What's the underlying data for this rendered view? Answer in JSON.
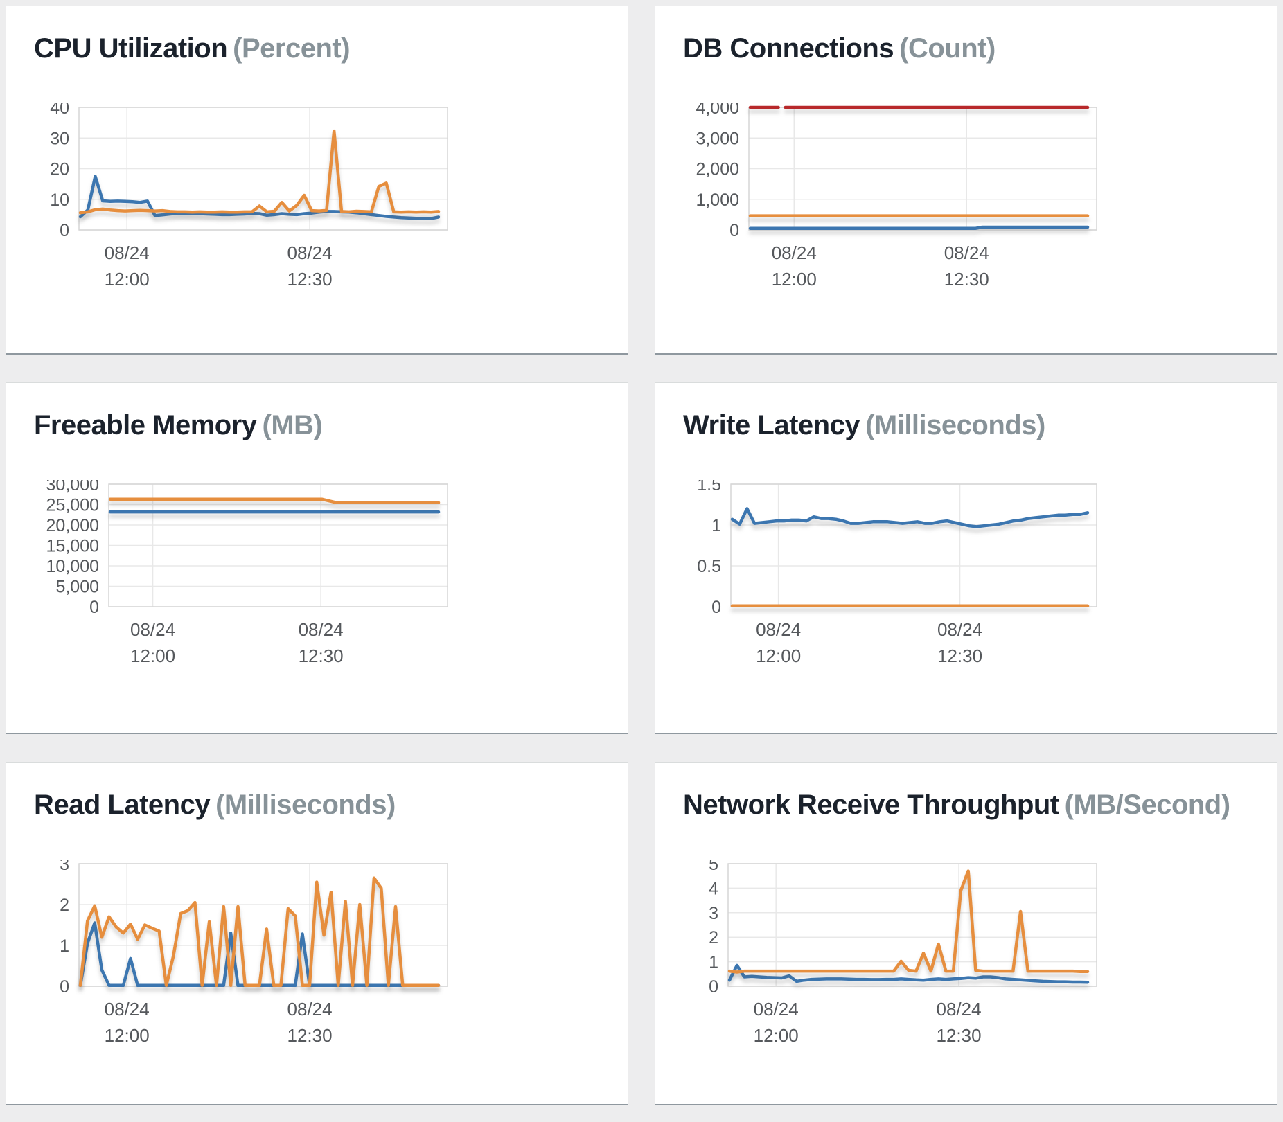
{
  "page": {
    "colors": {
      "background": "#ededee",
      "panel_bg": "#ffffff",
      "panel_border": "#d9dcdc",
      "panel_border_bottom": "#8f989f",
      "grid": "#e8e8e8",
      "plot_border": "#d6d6d6",
      "tick_text": "#55585c",
      "title_text": "#1b222c",
      "unit_text": "#879298",
      "series_blue": "#3C76B0",
      "series_orange": "#E68E3E",
      "series_red": "#B8292B"
    }
  },
  "x_axis": {
    "ticks": [
      {
        "frac": 0.13,
        "date": "08/24",
        "time": "12:00"
      },
      {
        "frac": 0.626,
        "date": "08/24",
        "time": "12:30"
      }
    ]
  },
  "chart_data": [
    {
      "type": "line",
      "title": "CPU Utilization",
      "unit": "(Percent)",
      "ylim": [
        0,
        40
      ],
      "y_tick_labels": [
        "0",
        "10",
        "20",
        "30",
        "40"
      ],
      "x_tick_labels": [
        "08/24 12:00",
        "08/24 12:30"
      ],
      "grid": "on",
      "legend": "none",
      "series": [
        {
          "name": "blue",
          "color": "#3C76B0",
          "values": [
            4.3,
            6.5,
            17.5,
            9.5,
            9.3,
            9.4,
            9.3,
            9.2,
            9.0,
            9.4,
            4.7,
            4.9,
            5.2,
            5.4,
            5.5,
            5.4,
            5.3,
            5.2,
            5.1,
            5.0,
            5.0,
            5.1,
            5.2,
            5.4,
            5.3,
            4.8,
            5.0,
            5.3,
            5.1,
            5.0,
            5.3,
            5.5,
            5.8,
            6.0,
            6.0,
            5.9,
            5.8,
            5.6,
            5.3,
            5.0,
            4.7,
            4.4,
            4.2,
            4.0,
            3.9,
            3.8,
            3.8,
            3.7,
            4.2
          ]
        },
        {
          "name": "orange",
          "color": "#E68E3E",
          "values": [
            5.6,
            5.9,
            6.6,
            6.8,
            6.5,
            6.3,
            6.2,
            6.3,
            6.4,
            6.3,
            6.2,
            6.3,
            6.0,
            5.9,
            5.9,
            5.8,
            5.9,
            5.8,
            5.8,
            5.9,
            5.8,
            5.8,
            5.9,
            5.9,
            7.8,
            5.9,
            6.1,
            9.0,
            6.2,
            8.0,
            11.3,
            6.3,
            6.2,
            6.4,
            32.3,
            6.0,
            5.9,
            6.1,
            6.0,
            5.9,
            14.2,
            15.3,
            5.9,
            5.8,
            5.9,
            5.8,
            5.9,
            5.8,
            6.0
          ]
        }
      ]
    },
    {
      "type": "line",
      "title": "DB Connections",
      "unit": "(Count)",
      "ylim": [
        0,
        4000
      ],
      "y_tick_labels": [
        "0",
        "1,000",
        "2,000",
        "3,000",
        "4,000"
      ],
      "x_tick_labels": [
        "08/24 12:00",
        "08/24 12:30"
      ],
      "grid": "on",
      "legend": "none",
      "series": [
        {
          "name": "blue",
          "color": "#3C76B0",
          "values": [
            50,
            50,
            50,
            50,
            50,
            50,
            50,
            50,
            50,
            50,
            50,
            50,
            50,
            50,
            50,
            50,
            50,
            50,
            50,
            50,
            50,
            50,
            50,
            50,
            50,
            50,
            50,
            50,
            50,
            50,
            50,
            50,
            50,
            90,
            90,
            90,
            90,
            90,
            90,
            90,
            90,
            90,
            90,
            90,
            90,
            90,
            90,
            90,
            90
          ]
        },
        {
          "name": "orange",
          "color": "#E68E3E",
          "values": [
            460,
            460,
            460,
            460,
            460,
            460,
            460,
            460,
            460,
            460,
            460,
            460,
            460,
            460,
            460,
            460,
            460,
            460,
            460,
            460,
            460,
            460,
            460,
            460,
            460,
            460,
            460,
            460,
            460,
            460,
            460,
            460,
            460,
            460,
            460,
            460,
            460,
            460,
            460,
            460,
            460,
            460,
            460,
            460,
            460,
            460,
            460,
            460,
            460
          ]
        },
        {
          "name": "red",
          "color": "#B8292B",
          "gap_frac": 0.11,
          "values": [
            4000,
            4000,
            4000,
            4000,
            4000,
            4000,
            4000,
            4000,
            4000,
            4000,
            4000,
            4000,
            4000,
            4000,
            4000,
            4000,
            4000,
            4000,
            4000,
            4000,
            4000,
            4000,
            4000,
            4000,
            4000,
            4000,
            4000,
            4000,
            4000,
            4000,
            4000,
            4000,
            4000,
            4000,
            4000,
            4000,
            4000,
            4000,
            4000,
            4000,
            4000,
            4000,
            4000,
            4000,
            4000,
            4000,
            4000,
            4000,
            4000
          ]
        }
      ]
    },
    {
      "type": "line",
      "title": "Freeable Memory",
      "unit": "(MB)",
      "ylim": [
        0,
        30000
      ],
      "y_tick_labels": [
        "0",
        "5,000",
        "10,000",
        "15,000",
        "20,000",
        "25,000",
        "30,000"
      ],
      "x_tick_labels": [
        "08/24 12:00",
        "08/24 12:30"
      ],
      "grid": "on",
      "legend": "none",
      "series": [
        {
          "name": "blue",
          "color": "#3C76B0",
          "values": [
            23200,
            23200,
            23200,
            23200,
            23200,
            23200,
            23200,
            23200,
            23200,
            23200,
            23200,
            23200,
            23200,
            23200,
            23200,
            23200,
            23200,
            23200,
            23200,
            23200,
            23200,
            23200,
            23200,
            23200,
            23200,
            23200,
            23200,
            23200,
            23200,
            23200,
            23200,
            23200,
            23200,
            23200,
            23200,
            23200,
            23200,
            23200,
            23200,
            23200,
            23200,
            23200,
            23200,
            23200,
            23200,
            23200,
            23200,
            23200,
            23200
          ]
        },
        {
          "name": "orange",
          "color": "#E68E3E",
          "values": [
            26300,
            26300,
            26300,
            26300,
            26300,
            26300,
            26300,
            26300,
            26300,
            26300,
            26300,
            26300,
            26300,
            26300,
            26300,
            26300,
            26300,
            26300,
            26300,
            26300,
            26300,
            26300,
            26300,
            26300,
            26300,
            26300,
            26300,
            26300,
            26300,
            26300,
            26300,
            26300,
            25900,
            25500,
            25480,
            25480,
            25480,
            25480,
            25480,
            25480,
            25480,
            25480,
            25480,
            25480,
            25480,
            25480,
            25480,
            25480,
            25480
          ]
        }
      ]
    },
    {
      "type": "line",
      "title": "Write Latency",
      "unit": "(Milliseconds)",
      "ylim": [
        0,
        1.5
      ],
      "y_tick_labels": [
        "0",
        "0.5",
        "1",
        "1.5"
      ],
      "x_tick_labels": [
        "08/24 12:00",
        "08/24 12:30"
      ],
      "grid": "on",
      "legend": "none",
      "series": [
        {
          "name": "blue",
          "color": "#3C76B0",
          "values": [
            1.07,
            1.01,
            1.2,
            1.02,
            1.03,
            1.04,
            1.05,
            1.05,
            1.06,
            1.06,
            1.05,
            1.1,
            1.08,
            1.08,
            1.07,
            1.05,
            1.02,
            1.02,
            1.03,
            1.04,
            1.04,
            1.04,
            1.03,
            1.02,
            1.03,
            1.04,
            1.02,
            1.02,
            1.04,
            1.05,
            1.03,
            1.01,
            0.99,
            0.98,
            0.99,
            1.0,
            1.01,
            1.03,
            1.05,
            1.06,
            1.08,
            1.09,
            1.1,
            1.11,
            1.12,
            1.12,
            1.13,
            1.13,
            1.15
          ]
        },
        {
          "name": "orange",
          "color": "#E68E3E",
          "values": [
            0.01,
            0.01,
            0.01,
            0.01,
            0.01,
            0.01,
            0.01,
            0.01,
            0.01,
            0.01,
            0.01,
            0.01,
            0.01,
            0.01,
            0.01,
            0.01,
            0.01,
            0.01,
            0.01,
            0.01,
            0.01,
            0.01,
            0.01,
            0.01,
            0.01,
            0.01,
            0.01,
            0.01,
            0.01,
            0.01,
            0.01,
            0.01,
            0.01,
            0.01,
            0.01,
            0.01,
            0.01,
            0.01,
            0.01,
            0.01,
            0.01,
            0.01,
            0.01,
            0.01,
            0.01,
            0.01,
            0.01,
            0.01,
            0.01
          ]
        }
      ]
    },
    {
      "type": "line",
      "title": "Read Latency",
      "unit": "(Milliseconds)",
      "ylim": [
        0,
        3
      ],
      "y_tick_labels": [
        "0",
        "1",
        "2",
        "3"
      ],
      "x_tick_labels": [
        "08/24 12:00",
        "08/24 12:30"
      ],
      "grid": "on",
      "legend": "none",
      "series": [
        {
          "name": "blue",
          "color": "#3C76B0",
          "values": [
            0.02,
            1.05,
            1.55,
            0.4,
            0.02,
            0.02,
            0.02,
            0.68,
            0.02,
            0.02,
            0.02,
            0.02,
            0.02,
            0.02,
            0.02,
            0.02,
            0.02,
            0.02,
            0.02,
            0.02,
            0.02,
            1.3,
            0.02,
            0.02,
            0.02,
            0.02,
            0.02,
            0.02,
            0.02,
            0.02,
            0.02,
            1.28,
            0.02,
            0.02,
            0.02,
            0.02,
            0.02,
            0.02,
            0.02,
            0.02,
            0.02,
            0.02,
            0.02,
            0.02,
            0.02,
            0.02,
            0.02,
            0.02,
            0.02,
            0.02,
            0.02
          ]
        },
        {
          "name": "orange",
          "color": "#E68E3E",
          "values": [
            0.02,
            1.6,
            1.97,
            1.2,
            1.7,
            1.45,
            1.3,
            1.52,
            1.15,
            1.5,
            1.42,
            1.35,
            0.02,
            0.75,
            1.78,
            1.85,
            2.05,
            0.02,
            1.58,
            0.02,
            1.95,
            0.02,
            1.95,
            0.02,
            0.02,
            0.02,
            1.4,
            0.02,
            0.02,
            1.9,
            1.72,
            0.02,
            0.02,
            2.55,
            1.25,
            2.3,
            0.02,
            2.08,
            0.02,
            2.0,
            0.02,
            2.65,
            2.4,
            0.02,
            1.95,
            0.02,
            0.02,
            0.02,
            0.02,
            0.02,
            0.02
          ]
        }
      ]
    },
    {
      "type": "line",
      "title": "Network Receive Throughput",
      "unit": "(MB/Second)",
      "ylim": [
        0,
        5
      ],
      "y_tick_labels": [
        "0",
        "1",
        "2",
        "3",
        "4",
        "5"
      ],
      "x_tick_labels": [
        "08/24 12:00",
        "08/24 12:30"
      ],
      "grid": "on",
      "legend": "none",
      "series": [
        {
          "name": "blue",
          "color": "#3C76B0",
          "values": [
            0.25,
            0.85,
            0.38,
            0.4,
            0.38,
            0.36,
            0.35,
            0.34,
            0.42,
            0.2,
            0.25,
            0.28,
            0.29,
            0.3,
            0.3,
            0.3,
            0.29,
            0.28,
            0.28,
            0.27,
            0.27,
            0.28,
            0.28,
            0.3,
            0.28,
            0.26,
            0.25,
            0.28,
            0.3,
            0.28,
            0.3,
            0.32,
            0.35,
            0.33,
            0.38,
            0.38,
            0.35,
            0.3,
            0.28,
            0.26,
            0.24,
            0.22,
            0.2,
            0.19,
            0.18,
            0.18,
            0.17,
            0.17,
            0.16
          ]
        },
        {
          "name": "orange",
          "color": "#E68E3E",
          "values": [
            0.62,
            0.58,
            0.62,
            0.62,
            0.62,
            0.62,
            0.62,
            0.62,
            0.62,
            0.62,
            0.62,
            0.62,
            0.62,
            0.62,
            0.62,
            0.62,
            0.62,
            0.62,
            0.62,
            0.62,
            0.62,
            0.62,
            0.62,
            1.02,
            0.65,
            0.62,
            1.35,
            0.62,
            1.72,
            0.62,
            0.62,
            3.9,
            4.7,
            0.65,
            0.62,
            0.62,
            0.62,
            0.62,
            0.62,
            3.05,
            0.62,
            0.62,
            0.62,
            0.62,
            0.62,
            0.62,
            0.62,
            0.6,
            0.6
          ]
        }
      ]
    }
  ]
}
